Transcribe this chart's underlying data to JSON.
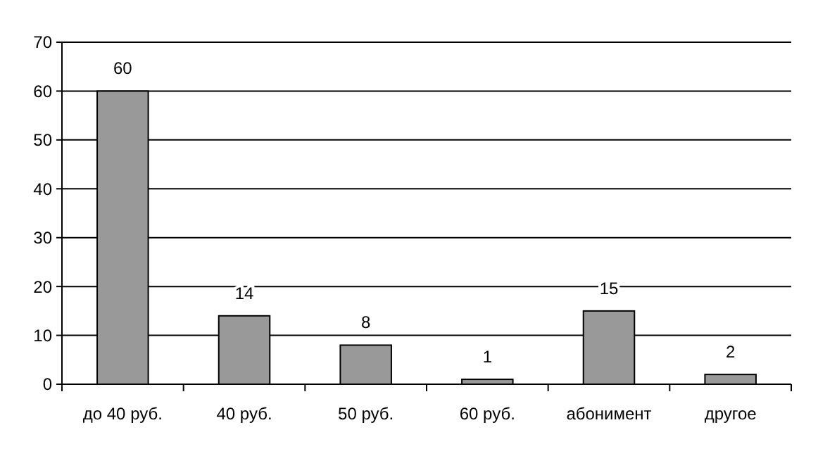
{
  "chart_data": {
    "type": "bar",
    "categories": [
      "до 40 руб.",
      "40 руб.",
      "50 руб.",
      "60 руб.",
      "абонимент",
      "другое"
    ],
    "values": [
      60,
      14,
      8,
      1,
      15,
      2
    ],
    "color": "#999999",
    "ylim": [
      0,
      70
    ],
    "yticks": [
      0,
      10,
      20,
      30,
      40,
      50,
      60,
      70
    ],
    "grid": "y",
    "data_labels": true
  }
}
